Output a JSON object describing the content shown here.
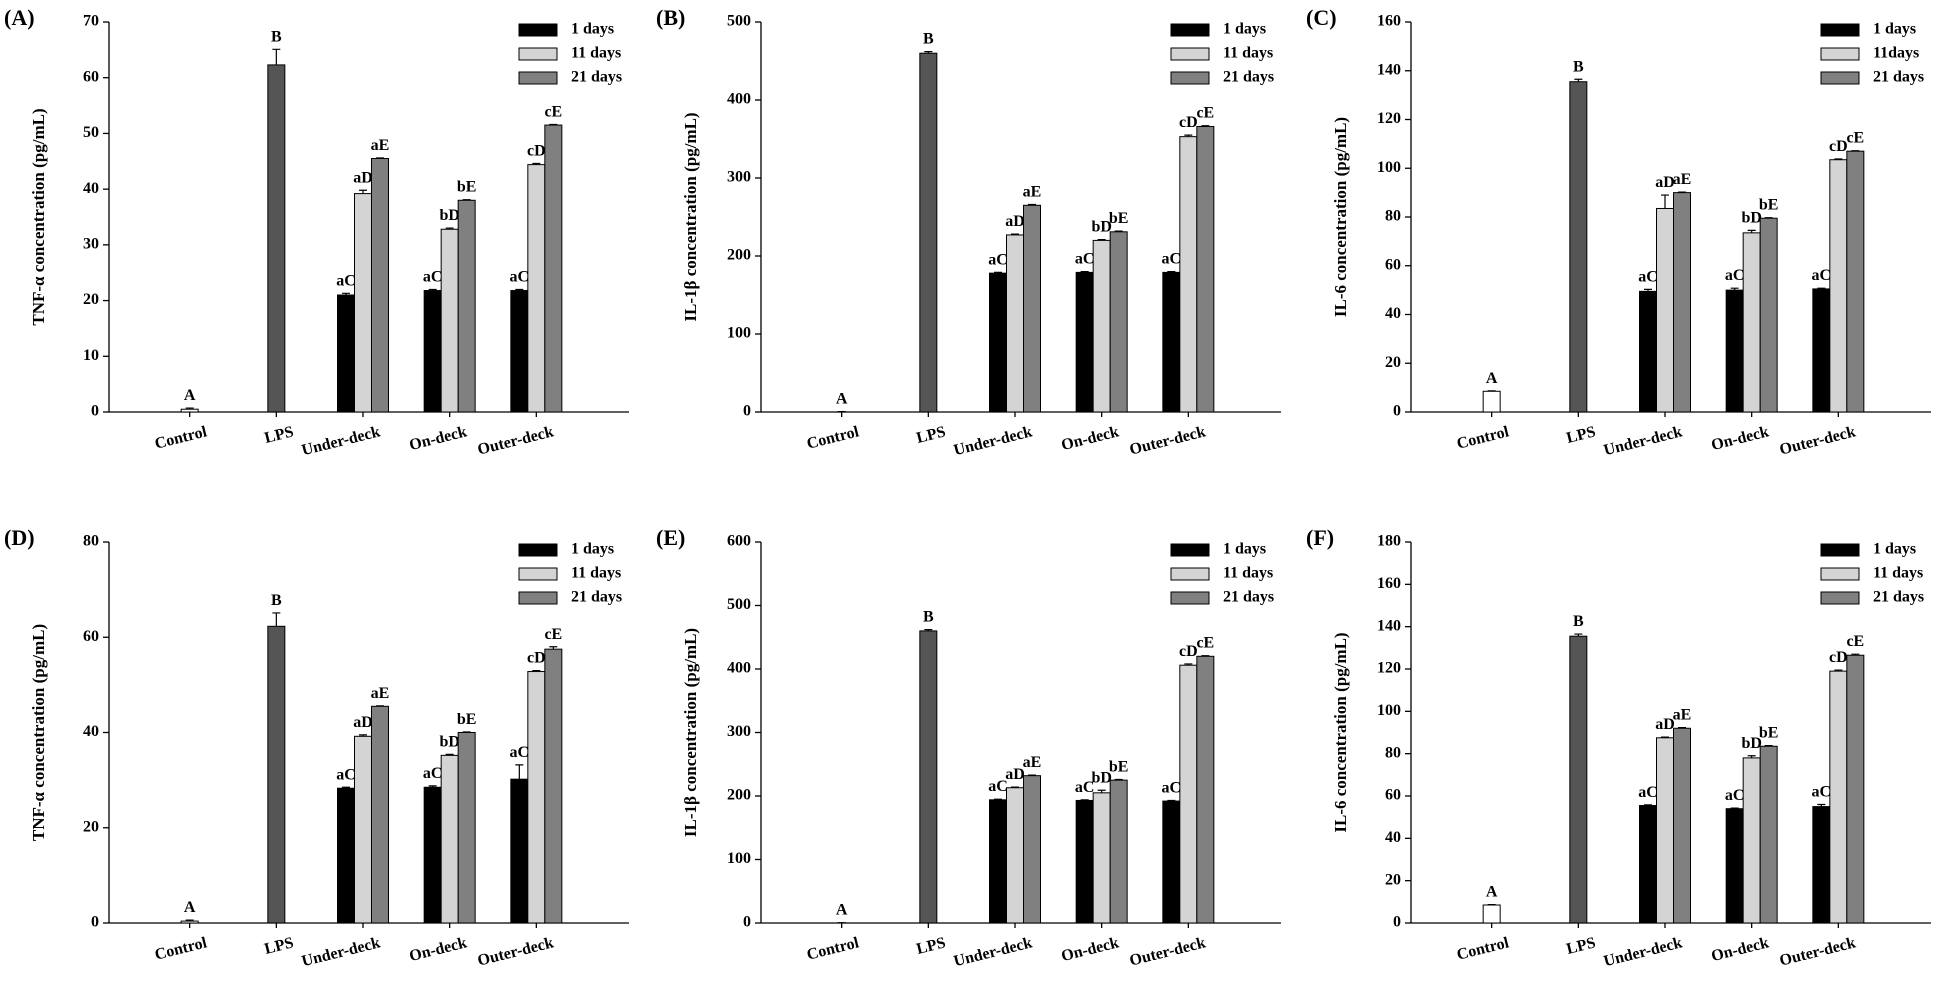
{
  "chart_data": [
    {
      "type": "bar",
      "panel": "(A)",
      "ylabel": "TNF-α concentration (pg/mL)",
      "categories": [
        "Control",
        "LPS",
        "Under-deck",
        "On-deck",
        "Outer-deck"
      ],
      "ylim": [
        0,
        70
      ],
      "yticks": [
        0,
        10,
        20,
        30,
        40,
        50,
        60,
        70
      ],
      "series": [
        {
          "colors": [
            "#ffffff",
            "#555555",
            null,
            null,
            null
          ],
          "values": [
            0.5,
            62.3,
            null,
            null,
            null
          ],
          "errors": [
            0.2,
            2.8,
            null,
            null,
            null
          ],
          "labels": [
            "A",
            "B",
            null,
            null,
            null
          ]
        },
        {
          "name": "1 days",
          "color": "#000000",
          "values": [
            null,
            null,
            21,
            21.8,
            21.8
          ],
          "errors": [
            null,
            null,
            0.3,
            0.2,
            0.2
          ],
          "labels": [
            null,
            null,
            "aC",
            "aC",
            "aC"
          ]
        },
        {
          "name": "11 days",
          "color": "#d4d4d4",
          "values": [
            null,
            null,
            39.2,
            32.8,
            44.4
          ],
          "errors": [
            null,
            null,
            0.6,
            0.2,
            0.2
          ],
          "labels": [
            null,
            null,
            "aD",
            "bD",
            "cD"
          ]
        },
        {
          "name": "21 days",
          "color": "#808080",
          "values": [
            null,
            null,
            45.5,
            38,
            51.5
          ],
          "errors": [
            null,
            null,
            0.1,
            0.1,
            0.1
          ],
          "labels": [
            null,
            null,
            "aE",
            "bE",
            "cE"
          ]
        }
      ]
    },
    {
      "type": "bar",
      "panel": "(B)",
      "ylabel": "IL-1β concentration (pg/mL)",
      "categories": [
        "Control",
        "LPS",
        "Under-deck",
        "On-deck",
        "Outer-deck"
      ],
      "ylim": [
        0,
        500
      ],
      "yticks": [
        0,
        100,
        200,
        300,
        400,
        500
      ],
      "series": [
        {
          "colors": [
            "#ffffff",
            "#555555",
            null,
            null,
            null
          ],
          "values": [
            0,
            460,
            null,
            null,
            null
          ],
          "errors": [
            0.5,
            2,
            null,
            null,
            null
          ],
          "labels": [
            "A",
            "B",
            null,
            null,
            null
          ]
        },
        {
          "name": "1 days",
          "color": "#000000",
          "values": [
            null,
            null,
            178,
            179,
            179
          ],
          "errors": [
            null,
            null,
            1,
            1,
            1
          ],
          "labels": [
            null,
            null,
            "aC",
            "aC",
            "aC"
          ]
        },
        {
          "name": "11 days",
          "color": "#d4d4d4",
          "values": [
            null,
            null,
            227,
            220,
            353
          ],
          "errors": [
            null,
            null,
            1,
            1,
            2
          ],
          "labels": [
            null,
            null,
            "aD",
            "bD",
            "cD"
          ]
        },
        {
          "name": "21 days",
          "color": "#808080",
          "values": [
            null,
            null,
            265,
            231,
            366
          ],
          "errors": [
            null,
            null,
            1,
            1,
            1
          ],
          "labels": [
            null,
            null,
            "aE",
            "bE",
            "cE"
          ]
        }
      ]
    },
    {
      "type": "bar",
      "panel": "(C)",
      "ylabel": "IL-6 concentration (pg/mL)",
      "categories": [
        "Control",
        "LPS",
        "Under-deck",
        "On-deck",
        "Outer-deck"
      ],
      "ylim": [
        0,
        160
      ],
      "yticks": [
        0,
        20,
        40,
        60,
        80,
        100,
        120,
        140,
        160
      ],
      "series": [
        {
          "colors": [
            "#ffffff",
            "#555555",
            null,
            null,
            null
          ],
          "values": [
            8.5,
            135.5,
            null,
            null,
            null
          ],
          "errors": [
            0.2,
            1,
            null,
            null,
            null
          ],
          "labels": [
            "A",
            "B",
            null,
            null,
            null
          ]
        },
        {
          "name": "1 days",
          "color": "#000000",
          "values": [
            null,
            null,
            49.5,
            50,
            50.5
          ],
          "errors": [
            null,
            null,
            0.8,
            0.8,
            0.3
          ],
          "labels": [
            null,
            null,
            "aC",
            "aC",
            "aC"
          ]
        },
        {
          "name": "11days",
          "color": "#d4d4d4",
          "values": [
            null,
            null,
            83.5,
            73.5,
            103.5
          ],
          "errors": [
            null,
            null,
            5.5,
            1,
            0.3
          ],
          "labels": [
            null,
            null,
            "aD",
            "bD",
            "cD"
          ]
        },
        {
          "name": "21 days",
          "color": "#808080",
          "values": [
            null,
            null,
            90,
            79.5,
            107
          ],
          "errors": [
            null,
            null,
            0.2,
            0.2,
            0.2
          ],
          "labels": [
            null,
            null,
            "aE",
            "bE",
            "cE"
          ]
        }
      ]
    },
    {
      "type": "bar",
      "panel": "(D)",
      "ylabel": "TNF-α concentration (pg/mL)",
      "categories": [
        "Control",
        "LPS",
        "Under-deck",
        "On-deck",
        "Outer-deck"
      ],
      "ylim": [
        0,
        80
      ],
      "yticks": [
        0,
        20,
        40,
        60,
        80
      ],
      "series": [
        {
          "colors": [
            "#ffffff",
            "#555555",
            null,
            null,
            null
          ],
          "values": [
            0.4,
            62.3,
            null,
            null,
            null
          ],
          "errors": [
            0.2,
            2.8,
            null,
            null,
            null
          ],
          "labels": [
            "A",
            "B",
            null,
            null,
            null
          ]
        },
        {
          "name": "1 days",
          "color": "#000000",
          "values": [
            null,
            null,
            28.3,
            28.5,
            30.2
          ],
          "errors": [
            null,
            null,
            0.2,
            0.3,
            3
          ],
          "labels": [
            null,
            null,
            "aC",
            "aC",
            "aC"
          ]
        },
        {
          "name": "11 days",
          "color": "#d4d4d4",
          "values": [
            null,
            null,
            39.2,
            35.2,
            52.8
          ],
          "errors": [
            null,
            null,
            0.3,
            0.2,
            0.2
          ],
          "labels": [
            null,
            null,
            "aD",
            "bD",
            "cD"
          ]
        },
        {
          "name": "21 days",
          "color": "#808080",
          "values": [
            null,
            null,
            45.5,
            40,
            57.5
          ],
          "errors": [
            null,
            null,
            0.1,
            0.1,
            0.5
          ],
          "labels": [
            null,
            null,
            "aE",
            "bE",
            "cE"
          ]
        }
      ]
    },
    {
      "type": "bar",
      "panel": "(E)",
      "ylabel": "IL-1β concentration (pg/mL)",
      "categories": [
        "Control",
        "LPS",
        "Under-deck",
        "On-deck",
        "Outer-deck"
      ],
      "ylim": [
        0,
        600
      ],
      "yticks": [
        0,
        100,
        200,
        300,
        400,
        500,
        600
      ],
      "series": [
        {
          "colors": [
            "#ffffff",
            "#555555",
            null,
            null,
            null
          ],
          "values": [
            0,
            460,
            null,
            null,
            null
          ],
          "errors": [
            0.5,
            2,
            null,
            null,
            null
          ],
          "labels": [
            "A",
            "B",
            null,
            null,
            null
          ]
        },
        {
          "name": "1 days",
          "color": "#000000",
          "values": [
            null,
            null,
            194,
            193,
            192
          ],
          "errors": [
            null,
            null,
            1,
            1,
            1
          ],
          "labels": [
            null,
            null,
            "aC",
            "aC",
            "aC"
          ]
        },
        {
          "name": "11 days",
          "color": "#d4d4d4",
          "values": [
            null,
            null,
            213,
            205,
            406
          ],
          "errors": [
            null,
            null,
            1,
            4,
            2
          ],
          "labels": [
            null,
            null,
            "aD",
            "bD",
            "cD"
          ]
        },
        {
          "name": "21 days",
          "color": "#808080",
          "values": [
            null,
            null,
            232,
            225,
            420
          ],
          "errors": [
            null,
            null,
            1,
            1,
            1
          ],
          "labels": [
            null,
            null,
            "aE",
            "bE",
            "cE"
          ]
        }
      ]
    },
    {
      "type": "bar",
      "panel": "(F)",
      "ylabel": "IL-6 concentration (pg/mL)",
      "categories": [
        "Control",
        "LPS",
        "Under-deck",
        "On-deck",
        "Outer-deck"
      ],
      "ylim": [
        0,
        180
      ],
      "yticks": [
        0,
        20,
        40,
        60,
        80,
        100,
        120,
        140,
        160,
        180
      ],
      "series": [
        {
          "colors": [
            "#ffffff",
            "#555555",
            null,
            null,
            null
          ],
          "values": [
            8.5,
            135.5,
            null,
            null,
            null
          ],
          "errors": [
            0.2,
            1,
            null,
            null,
            null
          ],
          "labels": [
            "A",
            "B",
            null,
            null,
            null
          ]
        },
        {
          "name": "1 days",
          "color": "#000000",
          "values": [
            null,
            null,
            55.5,
            54,
            55
          ],
          "errors": [
            null,
            null,
            0.3,
            0.3,
            1
          ],
          "labels": [
            null,
            null,
            "aC",
            "aC",
            "aC"
          ]
        },
        {
          "name": "11 days",
          "color": "#d4d4d4",
          "values": [
            null,
            null,
            87.5,
            78,
            119
          ],
          "errors": [
            null,
            null,
            0.3,
            1,
            0.5
          ],
          "labels": [
            null,
            null,
            "aD",
            "bD",
            "cD"
          ]
        },
        {
          "name": "21 days",
          "color": "#808080",
          "values": [
            null,
            null,
            92,
            83.5,
            126.5
          ],
          "errors": [
            null,
            null,
            0.3,
            0.3,
            0.5
          ],
          "labels": [
            null,
            null,
            "aE",
            "bE",
            "cE"
          ]
        }
      ]
    }
  ]
}
